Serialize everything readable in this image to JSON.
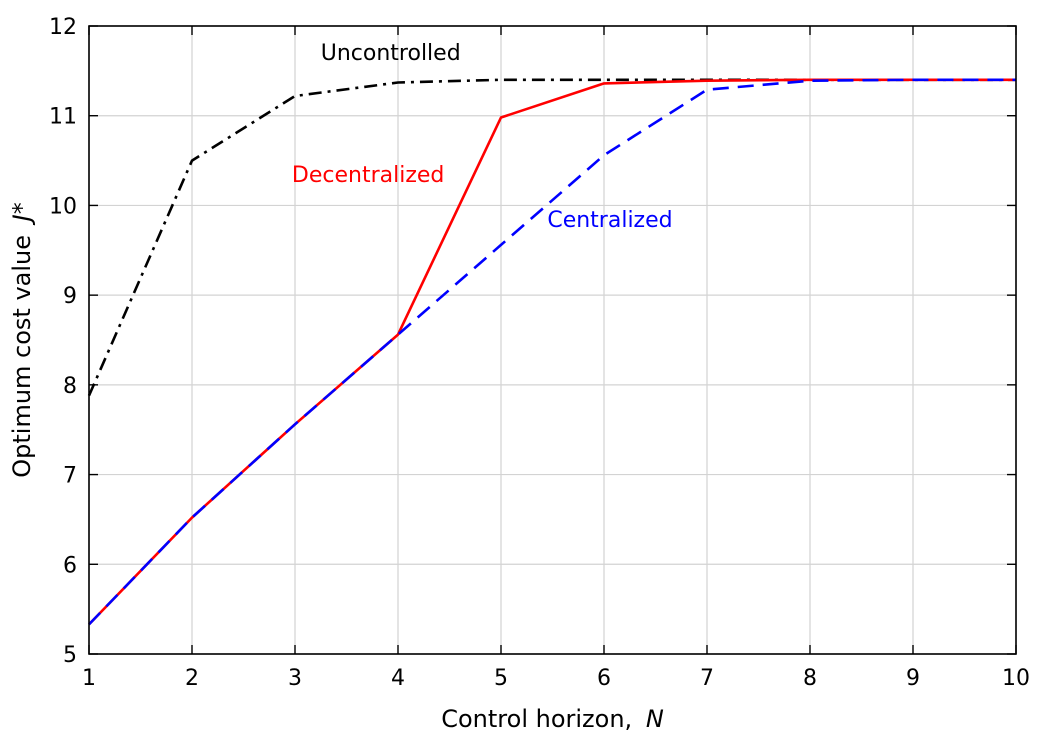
{
  "chart_data": {
    "type": "line",
    "title": "",
    "xlabel": "Control horizon,",
    "xlabel_symbol": "N",
    "ylabel": "Optimum cost value",
    "ylabel_symbol": "J*",
    "xlim": [
      1,
      10
    ],
    "ylim": [
      5,
      12
    ],
    "xticks": [
      1,
      2,
      3,
      4,
      5,
      6,
      7,
      8,
      9,
      10
    ],
    "yticks": [
      5,
      6,
      7,
      8,
      9,
      10,
      11,
      12
    ],
    "grid": true,
    "x": [
      1,
      2,
      3,
      4,
      5,
      6,
      7,
      8,
      9,
      10
    ],
    "series": [
      {
        "name": "Uncontrolled",
        "color": "#000000",
        "style": "dashdot",
        "values": [
          7.88,
          10.5,
          11.22,
          11.37,
          11.4,
          11.4,
          11.4,
          11.4,
          11.4,
          11.4
        ]
      },
      {
        "name": "Decentralized",
        "color": "#ff0000",
        "style": "solid",
        "values": [
          5.33,
          6.52,
          7.56,
          8.56,
          10.98,
          11.36,
          11.39,
          11.4,
          11.4,
          11.4
        ]
      },
      {
        "name": "Centralized",
        "color": "#0000ff",
        "style": "dashed",
        "values": [
          5.33,
          6.52,
          7.56,
          8.56,
          9.56,
          10.56,
          11.29,
          11.39,
          11.4,
          11.4
        ]
      }
    ],
    "annotations": [
      {
        "text": "Uncontrolled",
        "series": 0,
        "anchor_x": 3.25,
        "anchor_y": 11.62
      },
      {
        "text": "Decentralized",
        "series": 1,
        "anchor_x": 2.97,
        "anchor_y": 10.26
      },
      {
        "text": "Centralized",
        "series": 2,
        "anchor_x": 5.45,
        "anchor_y": 9.76
      }
    ]
  }
}
